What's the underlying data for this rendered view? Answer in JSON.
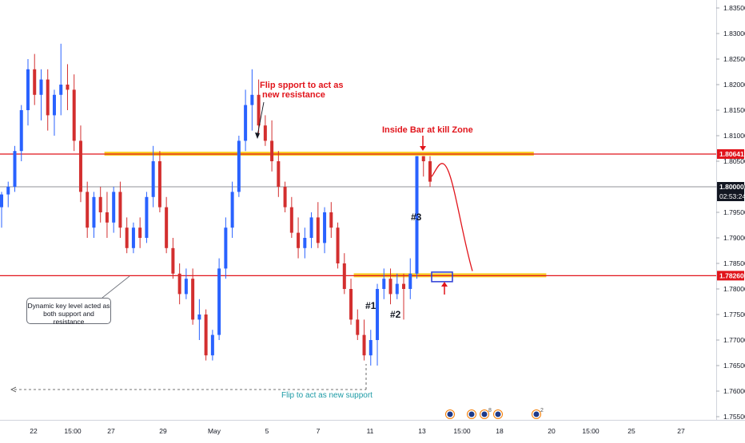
{
  "chart_data": {
    "type": "candlestick",
    "symbol_note": "",
    "y_ticks": [
      "1.75500",
      "1.76000",
      "1.76500",
      "1.77000",
      "1.77500",
      "1.78000",
      "1.78500",
      "1.79000",
      "1.79500",
      "1.80000",
      "1.80500",
      "1.81000",
      "1.81500",
      "1.82000",
      "1.82500",
      "1.83000",
      "1.83500"
    ],
    "ylim": [
      1.7535,
      1.838
    ],
    "x_ticks": [
      "22",
      "15:00",
      "27",
      "29",
      "May",
      "5",
      "7",
      "11",
      "13",
      "15:00",
      "18",
      "20",
      "15:00",
      "25",
      "27"
    ],
    "price_labels": {
      "upper_level": {
        "value": 1.80641,
        "text": "1.80641",
        "color": "#e1141b"
      },
      "current": {
        "value": 1.8,
        "text": "1.80000",
        "timer": "02:53:24",
        "color": "#131722"
      },
      "lower_level": {
        "value": 1.7826,
        "text": "1.78260",
        "color": "#e1141b"
      }
    },
    "zones": [
      {
        "name": "resistance-zone",
        "from_bar": 12,
        "to_bar": 86,
        "value": 1.8064,
        "color": "#f7c600"
      },
      {
        "name": "support-zone",
        "from_bar": 52,
        "to_bar": 88,
        "value": 1.7826,
        "color": "#f7c600"
      }
    ],
    "candles": [
      [
        1.796,
        1.799,
        1.792,
        1.7985
      ],
      [
        1.7985,
        1.801,
        1.796,
        1.8
      ],
      [
        1.8,
        1.808,
        1.799,
        1.807
      ],
      [
        1.807,
        1.816,
        1.805,
        1.815
      ],
      [
        1.815,
        1.825,
        1.812,
        1.823
      ],
      [
        1.823,
        1.826,
        1.816,
        1.818
      ],
      [
        1.818,
        1.823,
        1.813,
        1.821
      ],
      [
        1.821,
        1.823,
        1.811,
        1.814
      ],
      [
        1.814,
        1.819,
        1.81,
        1.818
      ],
      [
        1.818,
        1.828,
        1.814,
        1.82
      ],
      [
        1.82,
        1.824,
        1.815,
        1.819
      ],
      [
        1.819,
        1.822,
        1.807,
        1.809
      ],
      [
        1.809,
        1.812,
        1.797,
        1.799
      ],
      [
        1.799,
        1.801,
        1.79,
        1.792
      ],
      [
        1.792,
        1.799,
        1.79,
        1.798
      ],
      [
        1.798,
        1.8,
        1.793,
        1.795
      ],
      [
        1.795,
        1.799,
        1.79,
        1.793
      ],
      [
        1.793,
        1.8,
        1.791,
        1.799
      ],
      [
        1.799,
        1.801,
        1.79,
        1.792
      ],
      [
        1.792,
        1.794,
        1.787,
        1.788
      ],
      [
        1.788,
        1.793,
        1.787,
        1.792
      ],
      [
        1.792,
        1.794,
        1.788,
        1.79
      ],
      [
        1.79,
        1.799,
        1.789,
        1.798
      ],
      [
        1.798,
        1.808,
        1.796,
        1.805
      ],
      [
        1.805,
        1.807,
        1.795,
        1.796
      ],
      [
        1.796,
        1.798,
        1.787,
        1.788
      ],
      [
        1.788,
        1.79,
        1.782,
        1.783
      ],
      [
        1.783,
        1.785,
        1.777,
        1.779
      ],
      [
        1.779,
        1.784,
        1.778,
        1.782
      ],
      [
        1.782,
        1.784,
        1.773,
        1.774
      ],
      [
        1.774,
        1.778,
        1.77,
        1.775
      ],
      [
        1.775,
        1.776,
        1.766,
        1.767
      ],
      [
        1.767,
        1.772,
        1.766,
        1.771
      ],
      [
        1.771,
        1.786,
        1.77,
        1.784
      ],
      [
        1.784,
        1.794,
        1.782,
        1.792
      ],
      [
        1.792,
        1.801,
        1.79,
        1.799
      ],
      [
        1.799,
        1.81,
        1.798,
        1.809
      ],
      [
        1.809,
        1.819,
        1.807,
        1.816
      ],
      [
        1.816,
        1.823,
        1.811,
        1.818
      ],
      [
        1.818,
        1.821,
        1.81,
        1.812
      ],
      [
        1.812,
        1.814,
        1.808,
        1.809
      ],
      [
        1.809,
        1.813,
        1.803,
        1.805
      ],
      [
        1.805,
        1.807,
        1.798,
        1.8
      ],
      [
        1.8,
        1.801,
        1.795,
        1.796
      ],
      [
        1.796,
        1.798,
        1.79,
        1.791
      ],
      [
        1.791,
        1.794,
        1.786,
        1.788
      ],
      [
        1.788,
        1.792,
        1.786,
        1.79
      ],
      [
        1.79,
        1.795,
        1.788,
        1.794
      ],
      [
        1.794,
        1.797,
        1.788,
        1.789
      ],
      [
        1.789,
        1.796,
        1.787,
        1.795
      ],
      [
        1.795,
        1.797,
        1.79,
        1.792
      ],
      [
        1.792,
        1.793,
        1.784,
        1.785
      ],
      [
        1.785,
        1.787,
        1.779,
        1.78
      ],
      [
        1.78,
        1.782,
        1.773,
        1.774
      ],
      [
        1.774,
        1.776,
        1.77,
        1.771
      ],
      [
        1.771,
        1.774,
        1.766,
        1.767
      ],
      [
        1.767,
        1.772,
        1.765,
        1.77
      ],
      [
        1.77,
        1.781,
        1.765,
        1.78
      ],
      [
        1.78,
        1.784,
        1.778,
        1.782
      ],
      [
        1.782,
        1.784,
        1.777,
        1.779
      ],
      [
        1.779,
        1.783,
        1.778,
        1.781
      ],
      [
        1.781,
        1.783,
        1.774,
        1.78
      ],
      [
        1.78,
        1.786,
        1.778,
        1.783
      ],
      [
        1.783,
        1.806,
        1.782,
        1.806
      ],
      [
        1.806,
        1.806,
        1.802,
        1.805
      ],
      [
        1.805,
        1.806,
        1.8,
        1.801
      ]
    ],
    "forecast_path": [
      [
        86.5,
        1.802
      ],
      [
        88,
        1.8048
      ],
      [
        90,
        1.802
      ],
      [
        93,
        1.7895
      ],
      [
        95,
        1.7835
      ]
    ],
    "annotations": {
      "flip_resistance": "Flip spport to act as\nnew resistance",
      "inside_bar": "Inside Bar at kill Zone",
      "dynamic_level": "Dynamic key level acted as\nboth support and resistance",
      "flip_support": "Flip to act as new support",
      "label_1": "#1",
      "label_2": "#2",
      "label_3": "#3"
    },
    "grid": false,
    "event_markers": [
      "",
      "",
      "8",
      "",
      "2"
    ]
  }
}
